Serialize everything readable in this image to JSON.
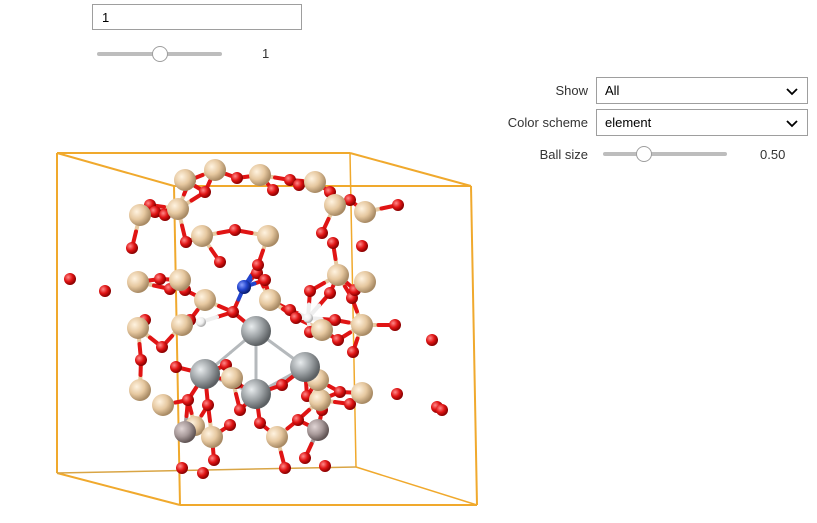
{
  "frame": {
    "input_value": "1",
    "slider_value": "1",
    "slider_fraction": 0.5
  },
  "controls": {
    "show_label": "Show",
    "show_value": "All",
    "color_scheme_label": "Color scheme",
    "color_scheme_value": "element",
    "ball_size_label": "Ball size",
    "ball_size_value": "0.50",
    "ball_size_fraction": 0.33
  },
  "icons": {
    "dropdown": "chevron-down-icon"
  },
  "colors": {
    "box": "#f0a92d",
    "oxygen": "#e01414",
    "silicon": "#e6c8a0",
    "metal": "#9ea3a6",
    "nitrogen": "#2244cc",
    "hydrogen": "#f5f5f5",
    "other_metal": "#a89a9a"
  }
}
